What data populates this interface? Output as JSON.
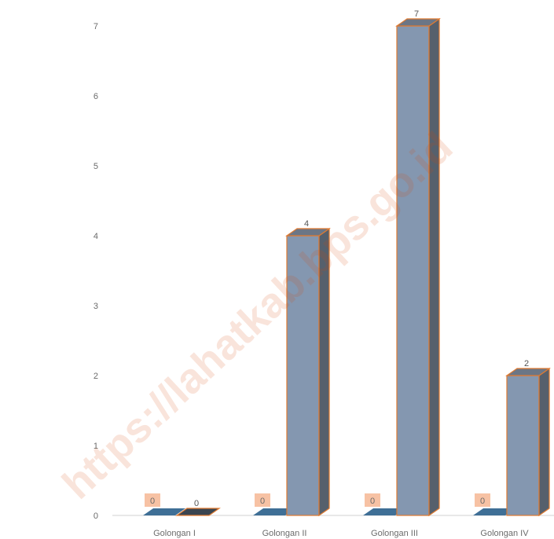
{
  "chart_data": {
    "type": "bar",
    "categories": [
      "Golongan I",
      "Golongan II",
      "Golongan III",
      "Golongan IV"
    ],
    "series": [
      {
        "values": [
          0,
          0,
          0,
          0
        ],
        "color": "#3f6f96",
        "label_bg": "#f7c2a4"
      },
      {
        "values": [
          0,
          4,
          7,
          2
        ],
        "color": "#8497b0",
        "side_color": "#56606c",
        "edge_color": "#e07a30"
      }
    ],
    "y_ticks": [
      "0",
      "1",
      "2",
      "3",
      "4",
      "5",
      "6",
      "7"
    ],
    "ylim": [
      0,
      7
    ],
    "grid": false,
    "legend": "none",
    "title": "",
    "xlabel": "",
    "ylabel": ""
  },
  "watermark": "https://lahatkab.bps.go.id"
}
